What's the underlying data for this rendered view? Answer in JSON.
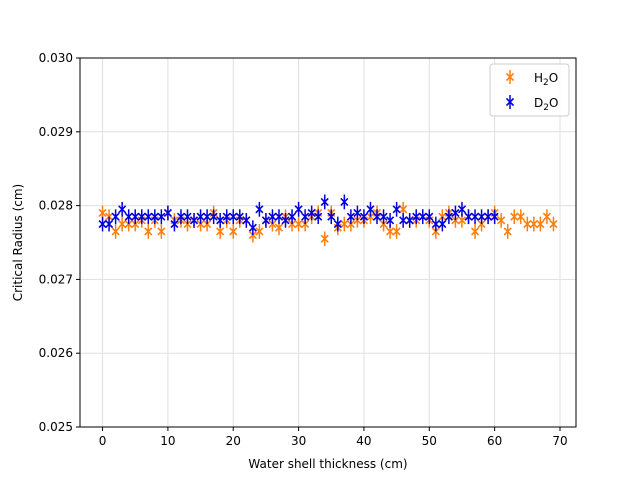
{
  "chart_data": {
    "type": "scatter",
    "xlabel": "Water shell thickness (cm)",
    "ylabel": "Critical Radius (cm)",
    "xlim": [
      -3.45,
      72.45
    ],
    "ylim": [
      0.025,
      0.03
    ],
    "xticks": [
      "0",
      "10",
      "20",
      "30",
      "40",
      "50",
      "60",
      "70"
    ],
    "yticks": [
      "0.025",
      "0.026",
      "0.027",
      "0.028",
      "0.029",
      "0.030"
    ],
    "grid": true,
    "legend_position": "top-right",
    "series": [
      {
        "name_base": "H",
        "name_sub": "2",
        "name_tail": "O",
        "color": "#ff7f0e",
        "error": 0.0001,
        "x": [
          0,
          1,
          2,
          3,
          4,
          5,
          6,
          7,
          8,
          9,
          10,
          11,
          12,
          13,
          14,
          15,
          16,
          17,
          18,
          19,
          20,
          21,
          22,
          23,
          24,
          25,
          26,
          27,
          28,
          29,
          30,
          31,
          32,
          33,
          34,
          35,
          36,
          37,
          38,
          39,
          40,
          41,
          42,
          43,
          44,
          45,
          46,
          47,
          48,
          49,
          50,
          51,
          52,
          53,
          54,
          55,
          56,
          57,
          58,
          59,
          60,
          61,
          62,
          63,
          64,
          65,
          66,
          67,
          68,
          69
        ],
        "y": [
          0.0279,
          0.02785,
          0.02765,
          0.02775,
          0.02775,
          0.02775,
          0.0278,
          0.02765,
          0.0278,
          0.02765,
          0.0279,
          0.0278,
          0.0278,
          0.02775,
          0.0278,
          0.02775,
          0.02775,
          0.0279,
          0.02765,
          0.0278,
          0.02765,
          0.0278,
          0.0278,
          0.0276,
          0.02765,
          0.0278,
          0.02775,
          0.0277,
          0.02785,
          0.02775,
          0.02775,
          0.02775,
          0.02785,
          0.0279,
          0.02755,
          0.0279,
          0.0277,
          0.02775,
          0.02775,
          0.0278,
          0.0278,
          0.02785,
          0.0279,
          0.02775,
          0.02765,
          0.02765,
          0.02795,
          0.0278,
          0.0278,
          0.02785,
          0.0278,
          0.02765,
          0.02785,
          0.0279,
          0.0278,
          0.0278,
          0.02785,
          0.02765,
          0.02775,
          0.02785,
          0.0279,
          0.0278,
          0.02765,
          0.02785,
          0.02785,
          0.02775,
          0.02775,
          0.02775,
          0.02785,
          0.02775
        ]
      },
      {
        "name_base": "D",
        "name_sub": "2",
        "name_tail": "O",
        "color": "#0000dd",
        "error": 0.0001,
        "x": [
          0,
          1,
          2,
          3,
          4,
          5,
          6,
          7,
          8,
          9,
          10,
          11,
          12,
          13,
          14,
          15,
          16,
          17,
          18,
          19,
          20,
          21,
          22,
          23,
          24,
          25,
          26,
          27,
          28,
          29,
          30,
          31,
          32,
          33,
          34,
          35,
          36,
          37,
          38,
          39,
          40,
          41,
          42,
          43,
          44,
          45,
          46,
          47,
          48,
          49,
          50,
          51,
          52,
          53,
          54,
          55,
          56,
          57,
          58,
          59,
          60
        ],
        "y": [
          0.02775,
          0.02775,
          0.02785,
          0.02795,
          0.02785,
          0.02785,
          0.02785,
          0.02785,
          0.02785,
          0.02785,
          0.0279,
          0.02775,
          0.02785,
          0.02785,
          0.0278,
          0.02785,
          0.02785,
          0.02785,
          0.0278,
          0.02785,
          0.02785,
          0.02785,
          0.0278,
          0.0277,
          0.02795,
          0.0278,
          0.02785,
          0.02785,
          0.0278,
          0.02785,
          0.02795,
          0.02785,
          0.0279,
          0.02785,
          0.02805,
          0.02785,
          0.02775,
          0.02805,
          0.02785,
          0.0279,
          0.02785,
          0.02795,
          0.02785,
          0.02785,
          0.0278,
          0.02795,
          0.0278,
          0.0278,
          0.02785,
          0.02785,
          0.02785,
          0.02775,
          0.02775,
          0.02785,
          0.0279,
          0.02795,
          0.02785,
          0.02785,
          0.02785,
          0.02785,
          0.02785
        ]
      }
    ]
  }
}
